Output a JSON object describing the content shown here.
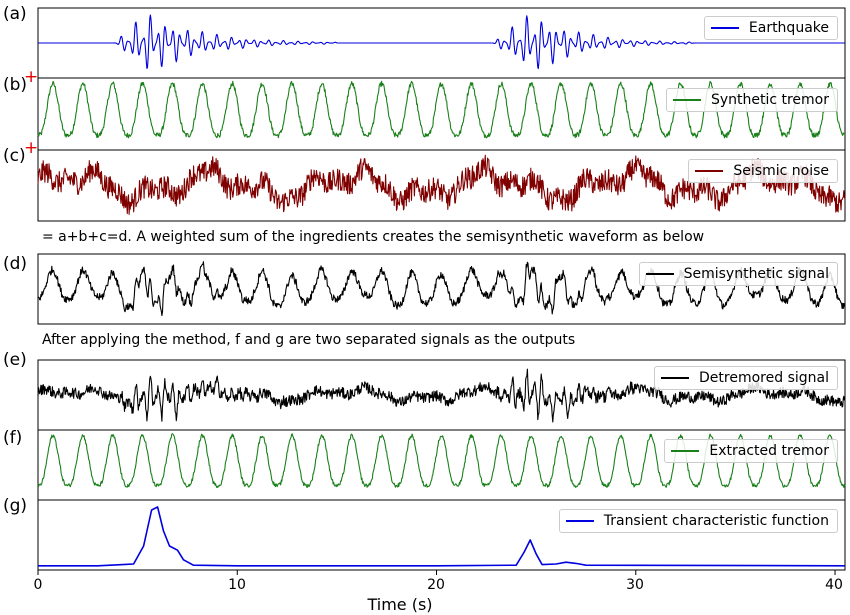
{
  "chart_data": {
    "type": "line",
    "xlabel": "Time (s)",
    "xlim": [
      0,
      40.5
    ],
    "xticks": [
      0,
      10,
      20,
      30,
      40
    ],
    "panels": [
      {
        "id": "a",
        "label": "(a)",
        "legend": "Earthquake",
        "color": "#0000e0",
        "plus": false,
        "series": [
          {
            "name": "Earthquake",
            "kind": "quake",
            "events": [
              {
                "start": 3.8,
                "peak": 5.5,
                "end": 15.0
              },
              {
                "start": 22.8,
                "peak": 24.8,
                "end": 33.0
              }
            ],
            "noise": 0.0
          }
        ]
      },
      {
        "id": "b",
        "label": "(b)",
        "legend": "Synthetic tremor",
        "color": "#1a801a",
        "plus": true,
        "series": [
          {
            "name": "Synthetic tremor",
            "kind": "tremor",
            "period": 1.5,
            "noise": 0.08
          }
        ]
      },
      {
        "id": "c",
        "label": "(c)",
        "legend": "Seismic noise",
        "color": "#800000",
        "plus": true,
        "series": [
          {
            "name": "Seismic noise",
            "kind": "noise",
            "noise": 0.45
          }
        ]
      },
      {
        "id": "d",
        "label": "(d)",
        "legend": "Semisynthetic signal",
        "color": "#000000",
        "plus": false,
        "series": [
          {
            "name": "Semisynthetic signal",
            "kind": "mix",
            "noise": 0.25
          }
        ]
      },
      {
        "id": "e",
        "label": "(e)",
        "legend": "Detremored signal",
        "color": "#000000",
        "plus": false,
        "series": [
          {
            "name": "Detremored signal",
            "kind": "detremored",
            "noise": 0.35
          }
        ]
      },
      {
        "id": "f",
        "label": "(f)",
        "legend": "Extracted tremor",
        "color": "#1a801a",
        "plus": false,
        "series": [
          {
            "name": "Extracted tremor",
            "kind": "tremor",
            "period": 1.5,
            "noise": 0.06
          }
        ]
      },
      {
        "id": "g",
        "label": "(g)",
        "legend": "Transient characteristic function",
        "color": "#0000e0",
        "plus": false,
        "series": [
          {
            "name": "Transient characteristic function",
            "kind": "cf",
            "points": [
              [
                0,
                0.02
              ],
              [
                3,
                0.02
              ],
              [
                4.8,
                0.05
              ],
              [
                5.3,
                0.35
              ],
              [
                5.7,
                0.95
              ],
              [
                6.0,
                1.0
              ],
              [
                6.3,
                0.6
              ],
              [
                6.6,
                0.35
              ],
              [
                7.0,
                0.28
              ],
              [
                7.3,
                0.12
              ],
              [
                7.8,
                0.03
              ],
              [
                10,
                0.02
              ],
              [
                20,
                0.02
              ],
              [
                24.0,
                0.03
              ],
              [
                24.4,
                0.25
              ],
              [
                24.7,
                0.45
              ],
              [
                25.0,
                0.22
              ],
              [
                25.3,
                0.04
              ],
              [
                26,
                0.05
              ],
              [
                26.5,
                0.08
              ],
              [
                27,
                0.06
              ],
              [
                27.5,
                0.03
              ],
              [
                40.5,
                0.02
              ]
            ]
          }
        ]
      }
    ]
  },
  "text": {
    "between_c_d": "= a+b+c=d. A weighted sum of the ingredients creates the semisynthetic waveform as below",
    "between_d_e": "After applying the method, f and g are two separated signals as the outputs",
    "eq_symbol": "="
  }
}
